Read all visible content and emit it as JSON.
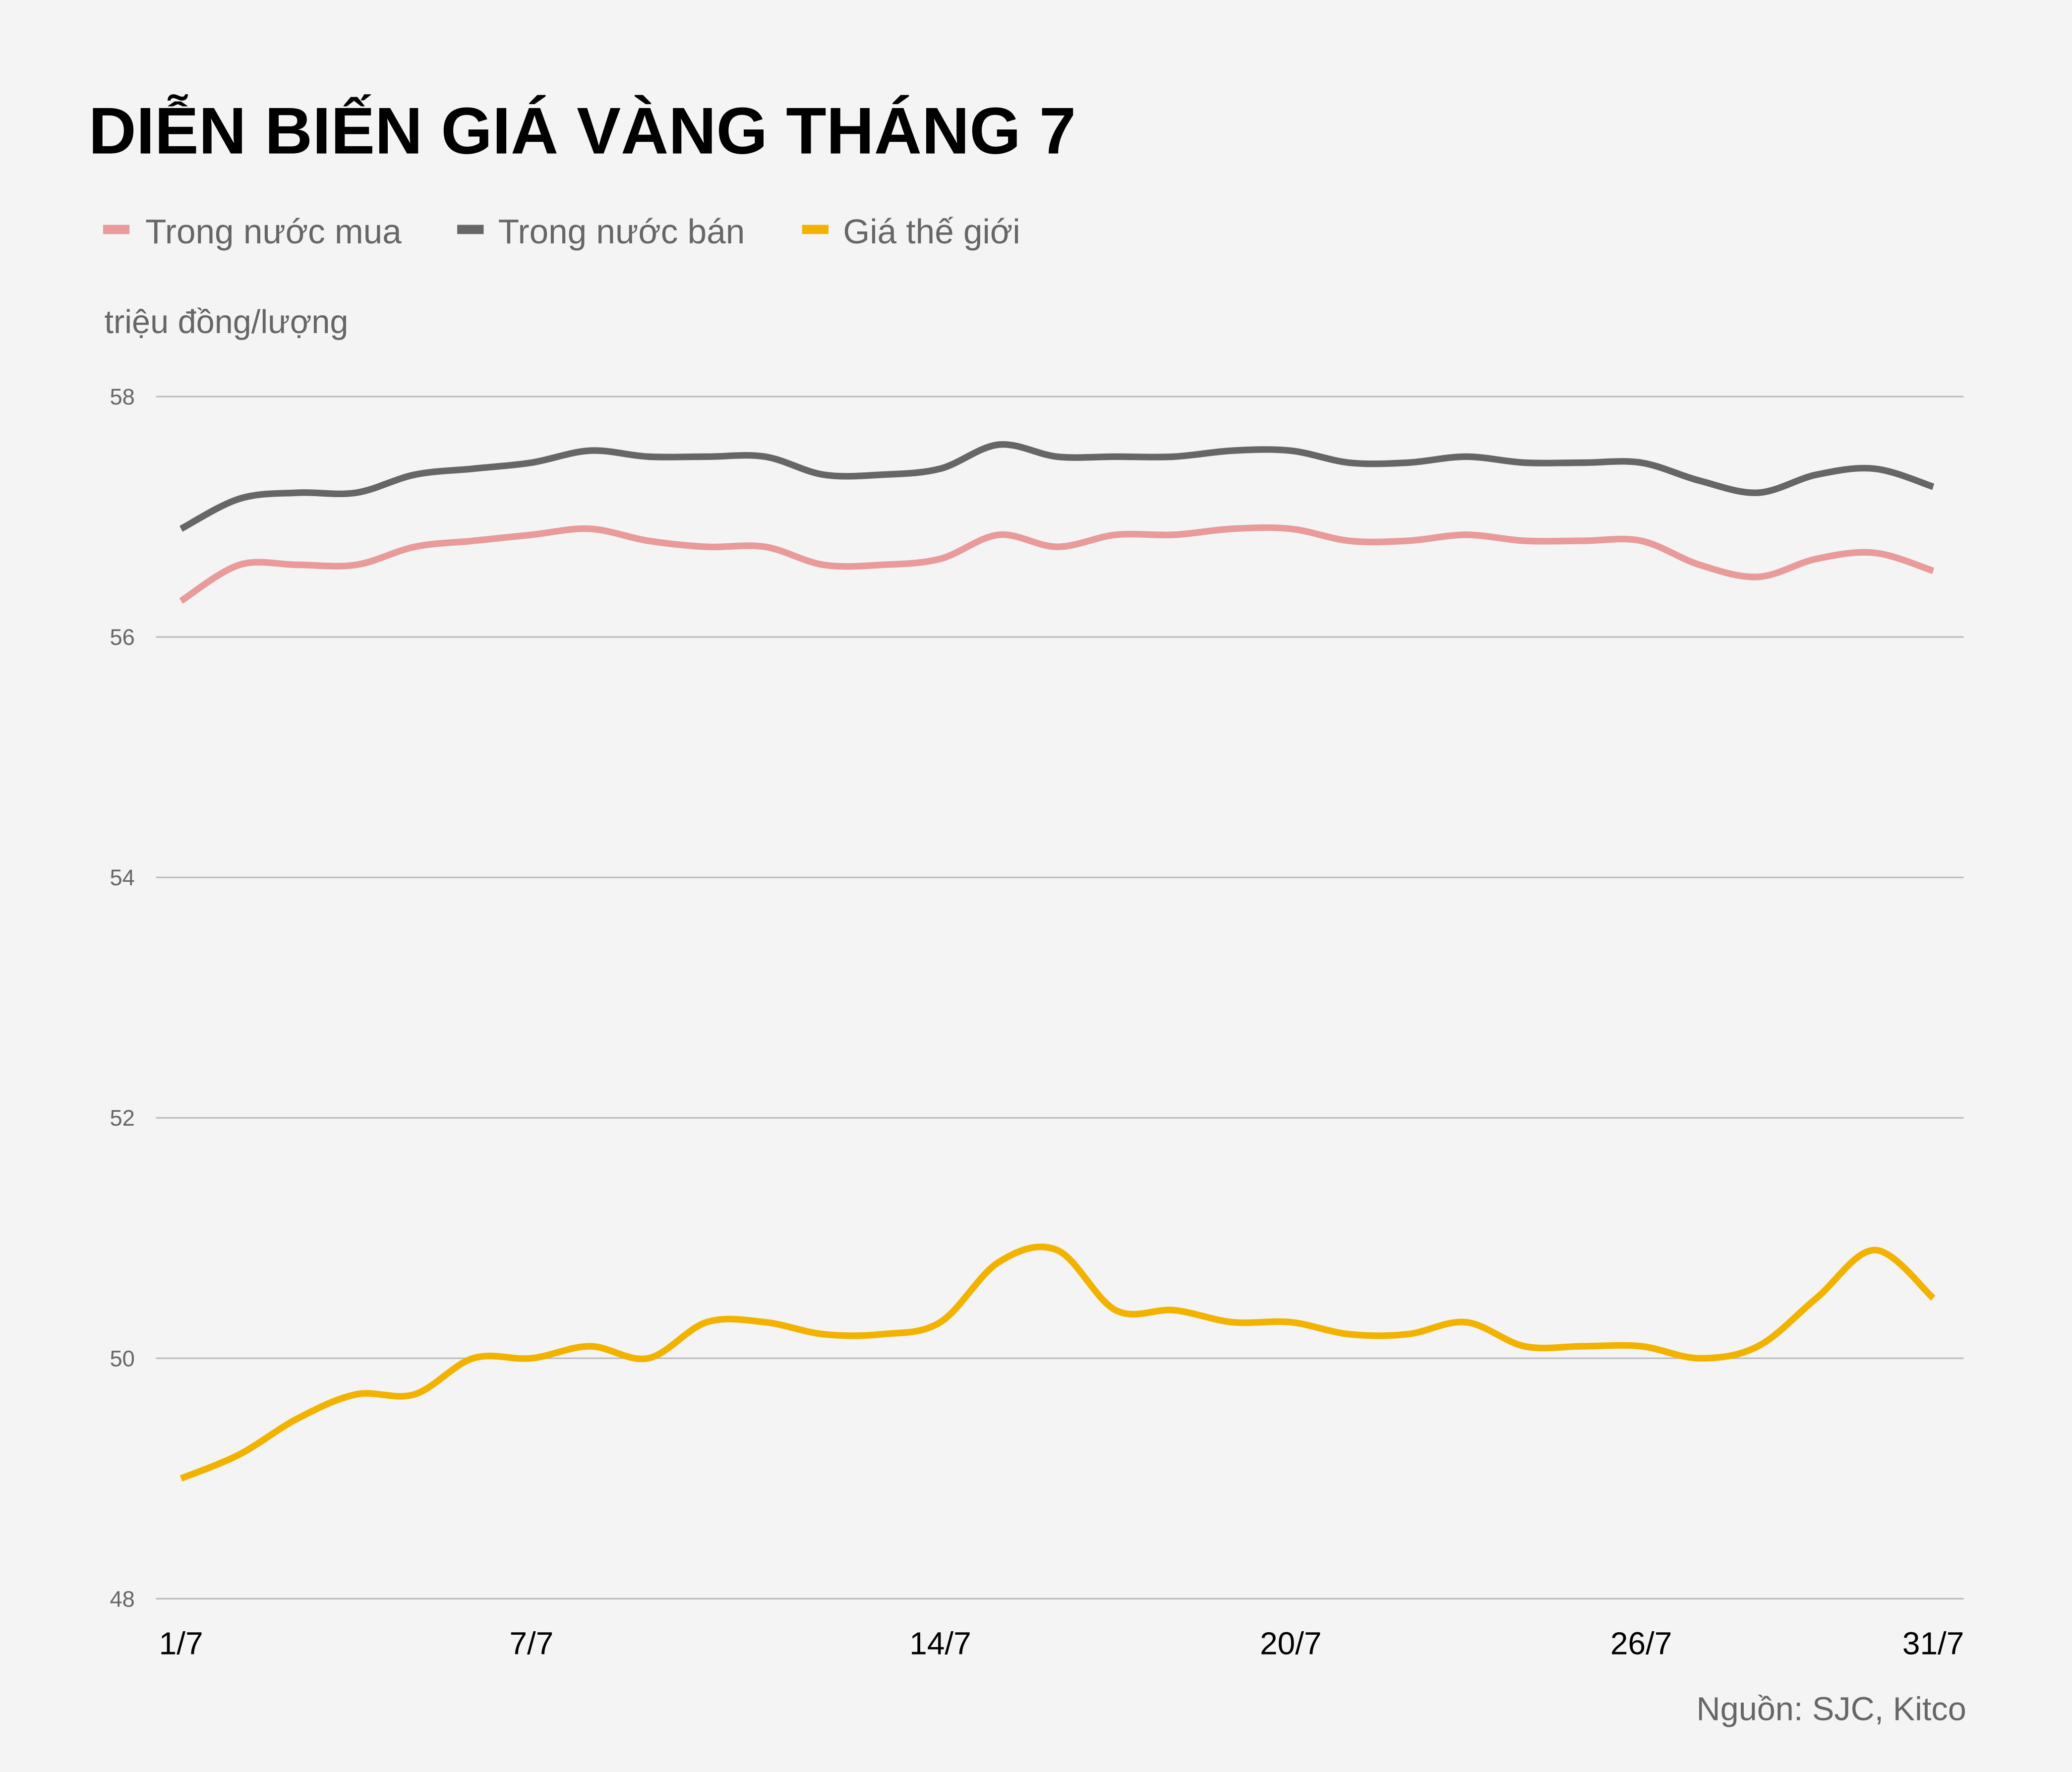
{
  "background": "#f4f4f4",
  "chart_data": {
    "type": "line",
    "title": "DIỄN BIẾN GIÁ VÀNG THÁNG 7",
    "ylabel": "triệu đồng/lượng",
    "xlabel": "",
    "source": "Nguồn: SJC, Kitco",
    "ylim": [
      48,
      58
    ],
    "yticks": [
      "48",
      "50",
      "52",
      "54",
      "56",
      "58"
    ],
    "grid": true,
    "legend_position": "top-left",
    "categories": [
      "1/7",
      "2/7",
      "3/7",
      "4/7",
      "5/7",
      "6/7",
      "7/7",
      "8/7",
      "9/7",
      "10/7",
      "11/7",
      "12/7",
      "13/7",
      "14/7",
      "15/7",
      "16/7",
      "17/7",
      "18/7",
      "19/7",
      "20/7",
      "21/7",
      "22/7",
      "23/7",
      "24/7",
      "25/7",
      "26/7",
      "27/7",
      "28/7",
      "29/7",
      "30/7",
      "31/7"
    ],
    "xticks": [
      "1/7",
      "7/7",
      "14/7",
      "20/7",
      "26/7",
      "31/7"
    ],
    "series": [
      {
        "name": "Trong nước mua",
        "color": "#e99a9a",
        "values": [
          56.3,
          56.6,
          56.6,
          56.6,
          56.75,
          56.8,
          56.85,
          56.9,
          56.8,
          56.75,
          56.75,
          56.6,
          56.6,
          56.65,
          56.85,
          56.75,
          56.85,
          56.85,
          56.9,
          56.9,
          56.8,
          56.8,
          56.85,
          56.8,
          56.8,
          56.8,
          56.6,
          56.5,
          56.65,
          56.7,
          56.55
        ]
      },
      {
        "name": "Trong nước bán",
        "color": "#666666",
        "values": [
          56.9,
          57.15,
          57.2,
          57.2,
          57.35,
          57.4,
          57.45,
          57.55,
          57.5,
          57.5,
          57.5,
          57.35,
          57.35,
          57.4,
          57.6,
          57.5,
          57.5,
          57.5,
          57.55,
          57.55,
          57.45,
          57.45,
          57.5,
          57.45,
          57.45,
          57.45,
          57.3,
          57.2,
          57.35,
          57.4,
          57.25
        ]
      },
      {
        "name": "Giá thế giới",
        "color": "#f2b300",
        "values": [
          49.0,
          49.2,
          49.5,
          49.7,
          49.7,
          50.0,
          50.0,
          50.1,
          50.0,
          50.3,
          50.3,
          50.2,
          50.2,
          50.3,
          50.8,
          50.9,
          50.4,
          50.4,
          50.3,
          50.3,
          50.2,
          50.2,
          50.3,
          50.1,
          50.1,
          50.1,
          50.0,
          50.1,
          50.5,
          50.9,
          50.5
        ]
      }
    ]
  }
}
